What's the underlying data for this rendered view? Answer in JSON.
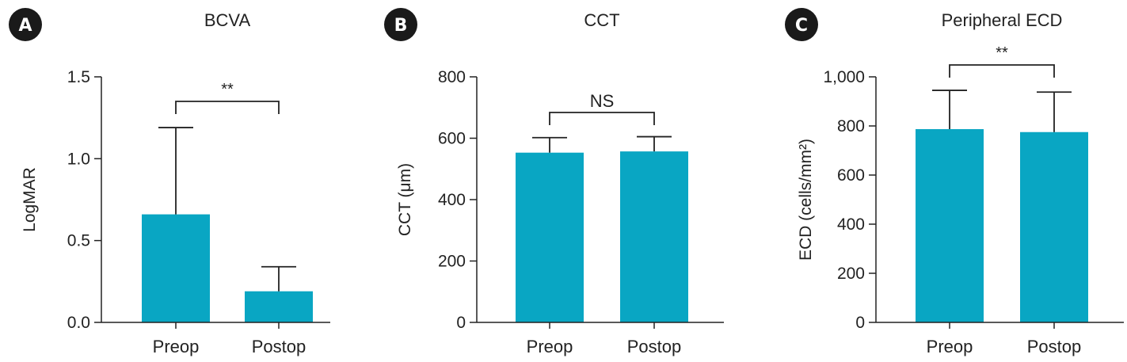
{
  "chart_data": [
    {
      "type": "bar",
      "panel": "A",
      "title": "BCVA",
      "ylabel": "LogMAR",
      "categories": [
        "Preop",
        "Postop"
      ],
      "values": [
        0.66,
        0.19
      ],
      "error_upper": [
        1.19,
        0.34
      ],
      "ylim": [
        0,
        1.5
      ],
      "yticks": [
        0,
        0.5,
        1.0,
        1.5
      ],
      "ytick_labels": [
        "0.0",
        "0.5",
        "1.0",
        "1.5"
      ],
      "significance": "**",
      "bar_color": "#09a6c3"
    },
    {
      "type": "bar",
      "panel": "B",
      "title": "CCT",
      "ylabel": "CCT (μm)",
      "categories": [
        "Preop",
        "Postop"
      ],
      "values": [
        553,
        557
      ],
      "error_upper": [
        602,
        605
      ],
      "ylim": [
        0,
        800
      ],
      "yticks": [
        0,
        200,
        400,
        600,
        800
      ],
      "ytick_labels": [
        "0",
        "200",
        "400",
        "600",
        "800"
      ],
      "significance": "NS",
      "bar_color": "#09a6c3"
    },
    {
      "type": "bar",
      "panel": "C",
      "title": "Peripheral ECD",
      "ylabel": "ECD (cells/mm²)",
      "categories": [
        "Preop",
        "Postop"
      ],
      "values": [
        787,
        775
      ],
      "error_upper": [
        945,
        938
      ],
      "ylim": [
        0,
        1000
      ],
      "yticks": [
        0,
        200,
        400,
        600,
        800,
        1000
      ],
      "ytick_labels": [
        "0",
        "200",
        "400",
        "600",
        "800",
        "1,000"
      ],
      "significance": "**",
      "bar_color": "#09a6c3"
    }
  ]
}
